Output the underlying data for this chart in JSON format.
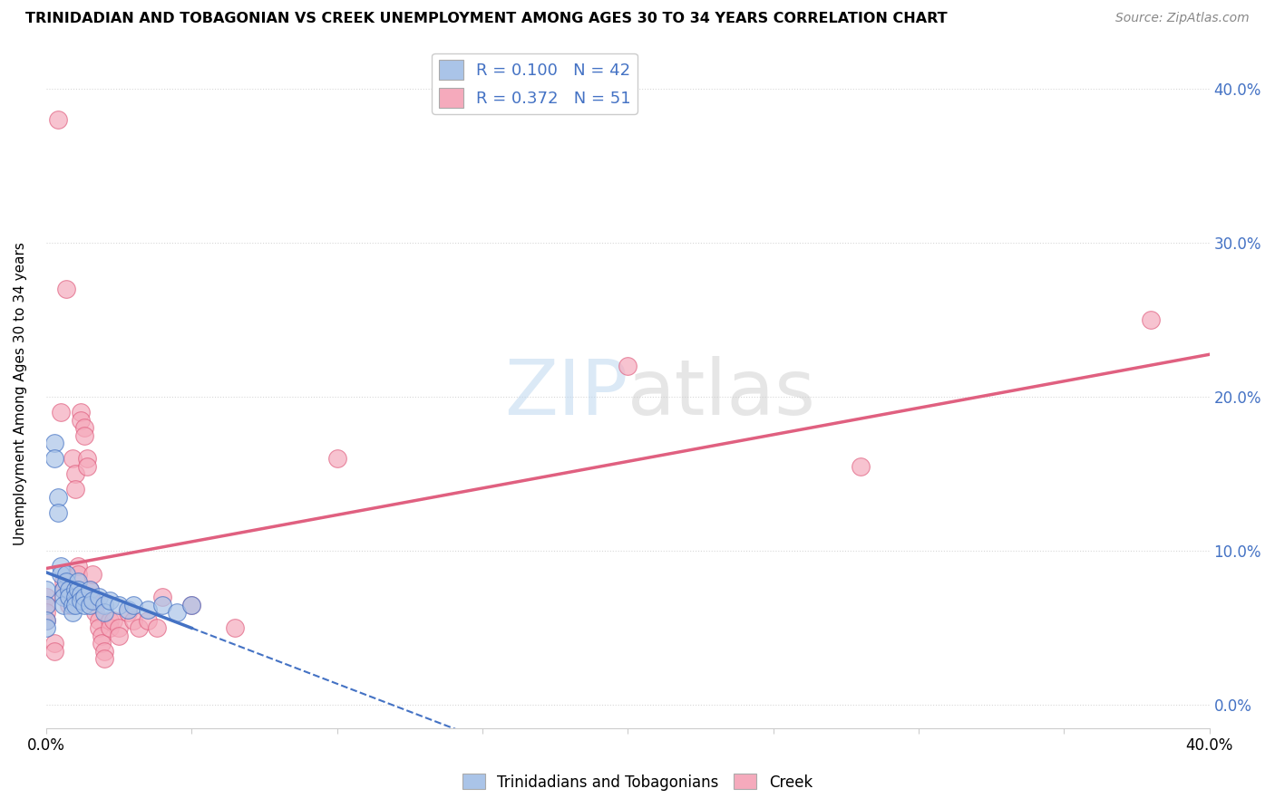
{
  "title": "TRINIDADIAN AND TOBAGONIAN VS CREEK UNEMPLOYMENT AMONG AGES 30 TO 34 YEARS CORRELATION CHART",
  "source": "Source: ZipAtlas.com",
  "ylabel": "Unemployment Among Ages 30 to 34 years",
  "xlim": [
    0.0,
    0.4
  ],
  "ylim": [
    -0.015,
    0.42
  ],
  "y_ticks": [
    0.0,
    0.1,
    0.2,
    0.3,
    0.4
  ],
  "x_ticks": [
    0.0,
    0.05,
    0.1,
    0.15,
    0.2,
    0.25,
    0.3,
    0.35,
    0.4
  ],
  "tt_color": "#aac4e8",
  "creek_color": "#f5aabc",
  "tt_line_color": "#4472c4",
  "creek_line_color": "#e06080",
  "watermark": "ZIPatlas",
  "background_color": "#ffffff",
  "grid_color": "#d8d8d8",
  "tt_scatter": [
    [
      0.0,
      0.075
    ],
    [
      0.0,
      0.065
    ],
    [
      0.0,
      0.055
    ],
    [
      0.0,
      0.05
    ],
    [
      0.003,
      0.17
    ],
    [
      0.003,
      0.16
    ],
    [
      0.004,
      0.135
    ],
    [
      0.004,
      0.125
    ],
    [
      0.005,
      0.09
    ],
    [
      0.005,
      0.085
    ],
    [
      0.006,
      0.075
    ],
    [
      0.006,
      0.07
    ],
    [
      0.006,
      0.065
    ],
    [
      0.007,
      0.085
    ],
    [
      0.007,
      0.08
    ],
    [
      0.008,
      0.075
    ],
    [
      0.008,
      0.07
    ],
    [
      0.009,
      0.065
    ],
    [
      0.009,
      0.06
    ],
    [
      0.01,
      0.075
    ],
    [
      0.01,
      0.07
    ],
    [
      0.01,
      0.065
    ],
    [
      0.011,
      0.08
    ],
    [
      0.011,
      0.075
    ],
    [
      0.012,
      0.072
    ],
    [
      0.012,
      0.068
    ],
    [
      0.013,
      0.07
    ],
    [
      0.013,
      0.065
    ],
    [
      0.015,
      0.075
    ],
    [
      0.015,
      0.065
    ],
    [
      0.016,
      0.068
    ],
    [
      0.018,
      0.07
    ],
    [
      0.02,
      0.065
    ],
    [
      0.02,
      0.06
    ],
    [
      0.022,
      0.068
    ],
    [
      0.025,
      0.065
    ],
    [
      0.028,
      0.062
    ],
    [
      0.03,
      0.065
    ],
    [
      0.035,
      0.062
    ],
    [
      0.04,
      0.065
    ],
    [
      0.045,
      0.06
    ],
    [
      0.05,
      0.065
    ]
  ],
  "creek_scatter": [
    [
      0.0,
      0.07
    ],
    [
      0.0,
      0.065
    ],
    [
      0.0,
      0.06
    ],
    [
      0.0,
      0.055
    ],
    [
      0.003,
      0.04
    ],
    [
      0.003,
      0.035
    ],
    [
      0.004,
      0.38
    ],
    [
      0.005,
      0.19
    ],
    [
      0.006,
      0.08
    ],
    [
      0.006,
      0.075
    ],
    [
      0.007,
      0.27
    ],
    [
      0.008,
      0.07
    ],
    [
      0.008,
      0.065
    ],
    [
      0.009,
      0.16
    ],
    [
      0.01,
      0.15
    ],
    [
      0.01,
      0.14
    ],
    [
      0.011,
      0.09
    ],
    [
      0.011,
      0.085
    ],
    [
      0.012,
      0.19
    ],
    [
      0.012,
      0.185
    ],
    [
      0.013,
      0.18
    ],
    [
      0.013,
      0.175
    ],
    [
      0.014,
      0.16
    ],
    [
      0.014,
      0.155
    ],
    [
      0.015,
      0.075
    ],
    [
      0.015,
      0.07
    ],
    [
      0.016,
      0.085
    ],
    [
      0.017,
      0.065
    ],
    [
      0.017,
      0.06
    ],
    [
      0.018,
      0.055
    ],
    [
      0.018,
      0.05
    ],
    [
      0.019,
      0.045
    ],
    [
      0.019,
      0.04
    ],
    [
      0.02,
      0.035
    ],
    [
      0.02,
      0.03
    ],
    [
      0.022,
      0.055
    ],
    [
      0.022,
      0.05
    ],
    [
      0.023,
      0.055
    ],
    [
      0.025,
      0.05
    ],
    [
      0.025,
      0.045
    ],
    [
      0.028,
      0.06
    ],
    [
      0.03,
      0.055
    ],
    [
      0.032,
      0.05
    ],
    [
      0.035,
      0.055
    ],
    [
      0.038,
      0.05
    ],
    [
      0.04,
      0.07
    ],
    [
      0.05,
      0.065
    ],
    [
      0.065,
      0.05
    ],
    [
      0.1,
      0.16
    ],
    [
      0.2,
      0.22
    ],
    [
      0.28,
      0.155
    ],
    [
      0.38,
      0.25
    ]
  ]
}
